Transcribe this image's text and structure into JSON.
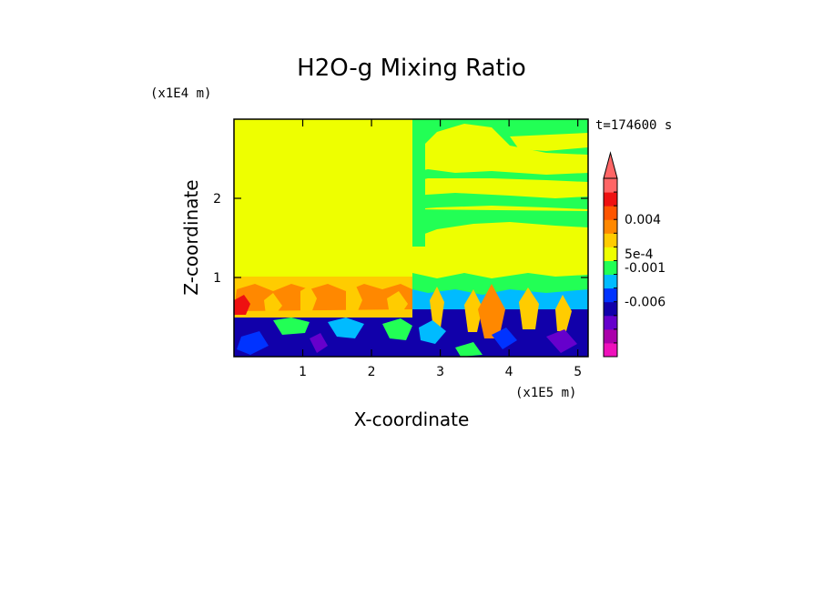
{
  "chart_data": {
    "type": "heatmap",
    "title": "H2O-g Mixing Ratio",
    "xlabel": "X-coordinate",
    "ylabel": "Z-coordinate",
    "x_scale_label": "(x1E5 m)",
    "y_scale_label": "(x1E4 m)",
    "time_label": "t=174600 s",
    "xlim": [
      0,
      5.15
    ],
    "ylim": [
      0,
      3.0
    ],
    "x_ticks": [
      {
        "value": 1,
        "label": "1"
      },
      {
        "value": 2,
        "label": "2"
      },
      {
        "value": 3,
        "label": "3"
      },
      {
        "value": 4,
        "label": "4"
      },
      {
        "value": 5,
        "label": "5"
      }
    ],
    "y_ticks": [
      {
        "value": 1,
        "label": "1"
      },
      {
        "value": 2,
        "label": "2"
      }
    ],
    "colorbar": {
      "colors_bottom_to_top": [
        "#ee11bb",
        "#aa00aa",
        "#6600cc",
        "#1100aa",
        "#0033ff",
        "#00bbff",
        "#22ff55",
        "#eeff00",
        "#ffcc00",
        "#ff8800",
        "#ff5500",
        "#ee1111",
        "#ff6666"
      ],
      "labels": [
        {
          "text": "0.004",
          "level": 0.004
        },
        {
          "text": "5e-4",
          "level": 0.0005
        },
        {
          "text": "-0.001",
          "level": -0.001
        },
        {
          "text": "-0.006",
          "level": -0.006
        }
      ]
    },
    "regions": [
      {
        "name": "upper-left",
        "x": [
          0,
          2.57
        ],
        "z": [
          1.02,
          3.0
        ],
        "color": "#eeff00"
      },
      {
        "name": "mid-left-band",
        "x": [
          0,
          2.57
        ],
        "z": [
          0.52,
          1.02
        ],
        "color": "#ffcc00"
      },
      {
        "name": "lower-left",
        "x": [
          0,
          2.57
        ],
        "z": [
          0,
          0.52
        ],
        "color": "#1100aa"
      },
      {
        "name": "upper-right",
        "x": [
          2.57,
          5.15
        ],
        "z": [
          1.2,
          3.0
        ],
        "color": "#22ff55"
      },
      {
        "name": "mid-right",
        "x": [
          2.57,
          5.15
        ],
        "z": [
          0.6,
          1.2
        ],
        "color": "#eeff00"
      },
      {
        "name": "lower-right",
        "x": [
          2.57,
          5.15
        ],
        "z": [
          0,
          0.6
        ],
        "color": "#1100aa"
      }
    ]
  }
}
